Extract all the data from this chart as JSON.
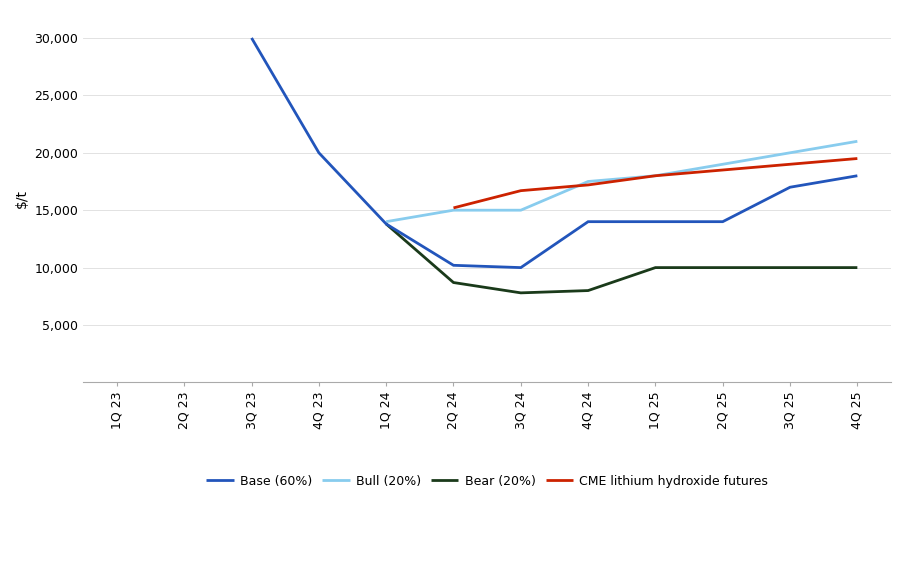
{
  "x_labels": [
    "1Q 23",
    "2Q 23",
    "3Q 23",
    "4Q 23",
    "1Q 24",
    "2Q 24",
    "3Q 24",
    "4Q 24",
    "1Q 25",
    "2Q 25",
    "3Q 25",
    "4Q 25"
  ],
  "base": [
    null,
    null,
    30000,
    20000,
    13800,
    10200,
    10000,
    14000,
    14000,
    14000,
    17000,
    18000
  ],
  "bull": [
    null,
    null,
    null,
    null,
    14000,
    15000,
    15000,
    17500,
    18000,
    19000,
    20000,
    21000
  ],
  "bear": [
    null,
    null,
    null,
    null,
    13800,
    8700,
    7800,
    8000,
    10000,
    10000,
    10000,
    10000
  ],
  "cme": [
    null,
    null,
    null,
    null,
    null,
    15200,
    16700,
    17200,
    18000,
    18500,
    19000,
    19500
  ],
  "base_color": "#2255BB",
  "bull_color": "#88CCEE",
  "bear_color": "#1A3A1A",
  "cme_color": "#CC2200",
  "ylabel": "$/t",
  "ylim": [
    0,
    32000
  ],
  "yticks": [
    5000,
    10000,
    15000,
    20000,
    25000,
    30000
  ],
  "legend_labels": [
    "Base (60%)",
    "Bull (20%)",
    "Bear (20%)",
    "CME lithium hydroxide futures"
  ],
  "background_color": "#FFFFFF"
}
